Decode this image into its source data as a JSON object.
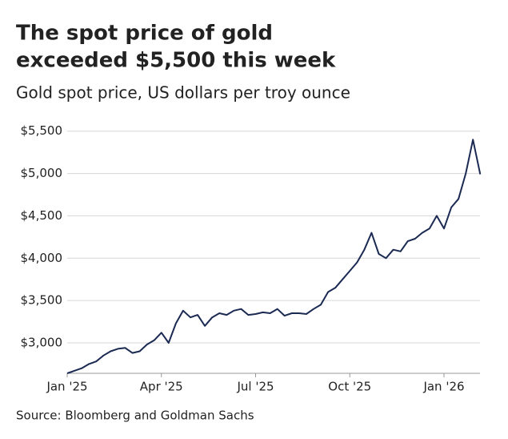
{
  "chart_data": {
    "type": "line",
    "title": [
      "The spot price of gold",
      "exceeded $5,500 this week"
    ],
    "subtitle": "Gold spot price, US dollars per troy ounce",
    "source": "Source: Bloomberg and Goldman Sachs",
    "categories": [
      "Jan '25",
      null,
      null,
      null,
      null,
      null,
      null,
      null,
      null,
      null,
      null,
      null,
      null,
      "Apr '25",
      null,
      null,
      null,
      null,
      null,
      null,
      null,
      null,
      null,
      null,
      null,
      null,
      "Jul '25",
      null,
      null,
      null,
      null,
      null,
      null,
      null,
      null,
      null,
      null,
      null,
      null,
      "Oct '25",
      null,
      null,
      null,
      null,
      null,
      null,
      null,
      null,
      null,
      null,
      null,
      null,
      "Jan '26",
      null,
      null,
      null,
      null,
      null
    ],
    "series": [
      {
        "name": "Gold spot price",
        "color": "#1b2a52",
        "values": [
          2640,
          2670,
          2700,
          2750,
          2780,
          2850,
          2900,
          2930,
          2940,
          2880,
          2900,
          2980,
          3030,
          3120,
          3000,
          3230,
          3380,
          3300,
          3330,
          3200,
          3300,
          3350,
          3330,
          3380,
          3400,
          3330,
          3340,
          3360,
          3350,
          3400,
          3320,
          3350,
          3350,
          3340,
          3400,
          3450,
          3600,
          3650,
          3750,
          3850,
          3950,
          4100,
          4300,
          4050,
          4000,
          4100,
          4080,
          4200,
          4230,
          4300,
          4350,
          4500,
          4350,
          4600,
          4700,
          5000,
          5400,
          4990
        ]
      }
    ],
    "ylim": [
      2640,
      5630
    ],
    "yticks": [
      {
        "value": 3000,
        "label": "$3,000"
      },
      {
        "value": 3500,
        "label": "$3,500"
      },
      {
        "value": 4000,
        "label": "$4,000"
      },
      {
        "value": 4500,
        "label": "$4,500"
      },
      {
        "value": 5000,
        "label": "$5,000"
      },
      {
        "value": 5500,
        "label": "$5,500"
      }
    ],
    "grid": true
  }
}
